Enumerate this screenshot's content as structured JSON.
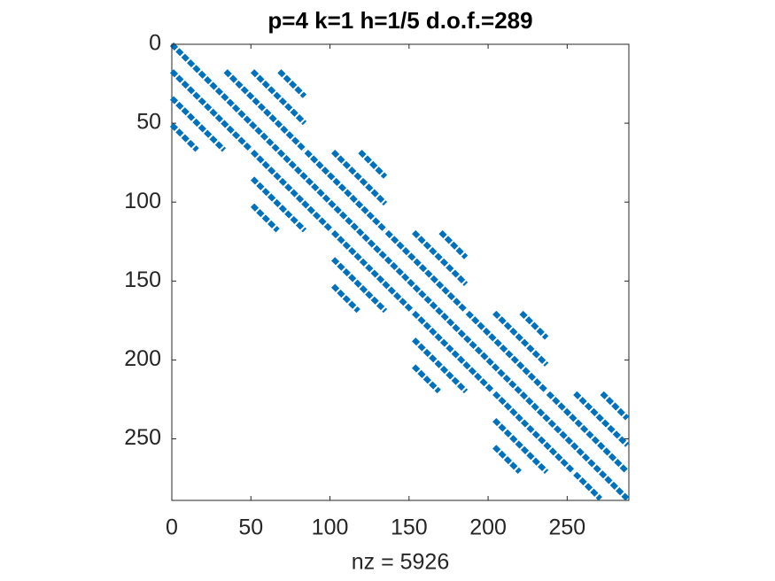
{
  "chart_data": {
    "type": "spy",
    "title": "p=4 k=1 h=1/5 d.o.f.=289",
    "x_label": "nz = 5926",
    "color": "#0072bd",
    "xlim": [
      0,
      289
    ],
    "ylim": [
      0,
      289
    ],
    "y_direction": "reverse",
    "xticks": [
      0,
      50,
      100,
      150,
      200,
      250
    ],
    "yticks": [
      0,
      50,
      100,
      150,
      200,
      250
    ],
    "segments": [
      {
        "x": [
          0,
          288
        ],
        "y": [
          0,
          288
        ]
      },
      {
        "x": [
          0,
          50
        ],
        "y": [
          17,
          67
        ]
      },
      {
        "x": [
          0,
          33
        ],
        "y": [
          34,
          67
        ]
      },
      {
        "x": [
          0,
          16
        ],
        "y": [
          51,
          67
        ]
      },
      {
        "x": [
          34,
          84
        ],
        "y": [
          17,
          67
        ]
      },
      {
        "x": [
          51,
          84
        ],
        "y": [
          17,
          50
        ]
      },
      {
        "x": [
          68,
          84
        ],
        "y": [
          17,
          33
        ]
      },
      {
        "x": [
          51,
          101
        ],
        "y": [
          68,
          118
        ]
      },
      {
        "x": [
          51,
          84
        ],
        "y": [
          85,
          118
        ]
      },
      {
        "x": [
          51,
          67
        ],
        "y": [
          102,
          118
        ]
      },
      {
        "x": [
          85,
          135
        ],
        "y": [
          68,
          118
        ]
      },
      {
        "x": [
          102,
          135
        ],
        "y": [
          68,
          101
        ]
      },
      {
        "x": [
          119,
          135
        ],
        "y": [
          68,
          84
        ]
      },
      {
        "x": [
          102,
          152
        ],
        "y": [
          119,
          169
        ]
      },
      {
        "x": [
          102,
          135
        ],
        "y": [
          136,
          169
        ]
      },
      {
        "x": [
          102,
          118
        ],
        "y": [
          153,
          169
        ]
      },
      {
        "x": [
          136,
          186
        ],
        "y": [
          119,
          169
        ]
      },
      {
        "x": [
          153,
          186
        ],
        "y": [
          119,
          152
        ]
      },
      {
        "x": [
          170,
          186
        ],
        "y": [
          119,
          135
        ]
      },
      {
        "x": [
          153,
          203
        ],
        "y": [
          170,
          220
        ]
      },
      {
        "x": [
          153,
          186
        ],
        "y": [
          187,
          220
        ]
      },
      {
        "x": [
          153,
          169
        ],
        "y": [
          204,
          220
        ]
      },
      {
        "x": [
          187,
          237
        ],
        "y": [
          170,
          220
        ]
      },
      {
        "x": [
          204,
          237
        ],
        "y": [
          170,
          203
        ]
      },
      {
        "x": [
          221,
          237
        ],
        "y": [
          170,
          186
        ]
      },
      {
        "x": [
          204,
          254
        ],
        "y": [
          221,
          271
        ]
      },
      {
        "x": [
          204,
          237
        ],
        "y": [
          238,
          271
        ]
      },
      {
        "x": [
          204,
          220
        ],
        "y": [
          255,
          271
        ]
      },
      {
        "x": [
          238,
          288
        ],
        "y": [
          221,
          271
        ]
      },
      {
        "x": [
          255,
          288
        ],
        "y": [
          221,
          254
        ]
      },
      {
        "x": [
          272,
          288
        ],
        "y": [
          221,
          237
        ]
      },
      {
        "x": [
          255,
          271
        ],
        "y": [
          272,
          288
        ]
      }
    ]
  }
}
